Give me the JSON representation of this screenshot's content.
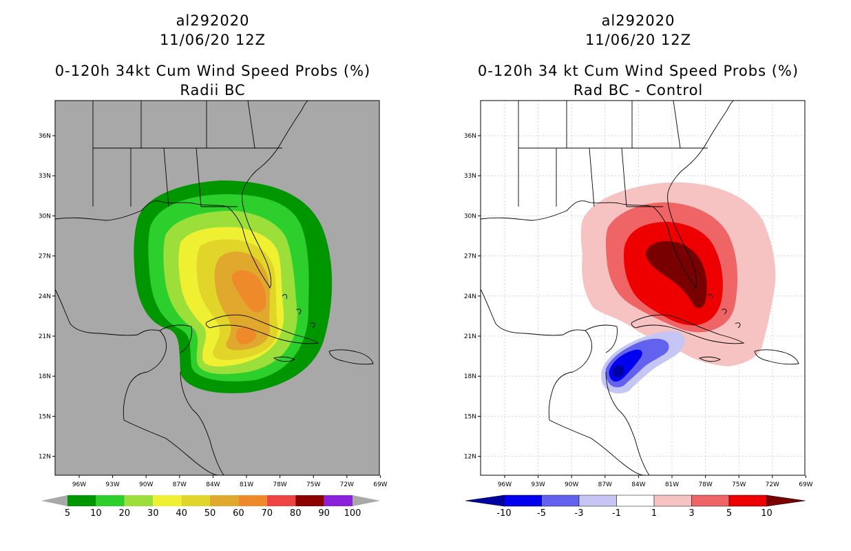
{
  "colors": {
    "land_bg": "#a8a8a8",
    "left_scale": [
      "#009600",
      "#2ccf2c",
      "#9ddf3a",
      "#f0f032",
      "#e1d52a",
      "#e0a92e",
      "#ee8a2a",
      "#ee4444",
      "#8c0000",
      "#8a22dc"
    ],
    "right_scale": [
      "#0000a0",
      "#0000ee",
      "#6262ee",
      "#c6c6f4",
      "#ffffff",
      "#f7c2c2",
      "#ef6464",
      "#ee0000",
      "#780000"
    ]
  },
  "left_panel": {
    "title_line1": "al292020",
    "title_line2": "11/06/20 12Z",
    "title_line3": "0-120h 34kt Cum Wind Speed Probs (%)",
    "title_line4": "Radii BC",
    "colorbar_labels": [
      "5",
      "10",
      "20",
      "30",
      "40",
      "50",
      "60",
      "70",
      "80",
      "90",
      "100"
    ]
  },
  "right_panel": {
    "title_line1": "al292020",
    "title_line2": "11/06/20 12Z",
    "title_line3": "0-120h 34 kt Cum Wind Speed Probs (%)",
    "title_line4": "Rad BC - Control",
    "colorbar_labels": [
      "-10",
      "-5",
      "-3",
      "-1",
      "1",
      "3",
      "5",
      "10"
    ]
  },
  "axes": {
    "lon_labels": [
      "96W",
      "93W",
      "90W",
      "87W",
      "84W",
      "81W",
      "78W",
      "75W",
      "72W",
      "69W"
    ],
    "lat_labels": [
      "36N",
      "33N",
      "30N",
      "27N",
      "24N",
      "21N",
      "18N",
      "15N",
      "12N"
    ]
  }
}
